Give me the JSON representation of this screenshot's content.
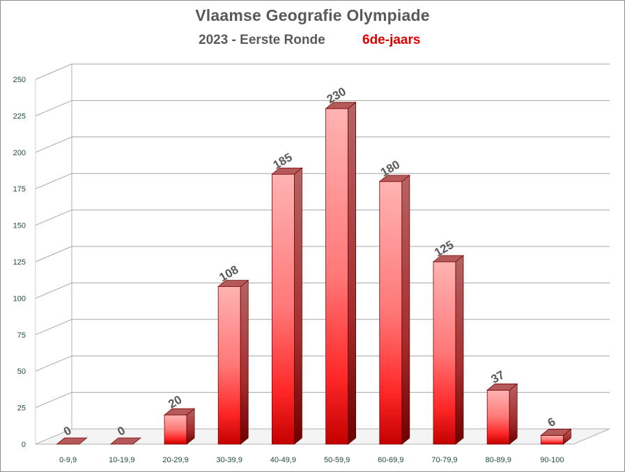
{
  "chart_data": {
    "type": "bar",
    "title": "Vlaamse Geografie Olympiade",
    "subtitle_left": "2023 - Eerste Ronde",
    "subtitle_right": "6de-jaars",
    "categories": [
      "0-9,9",
      "10-19,9",
      "20-29,9",
      "30-39,9",
      "40-49,9",
      "50-59,9",
      "60-69,9",
      "70-79,9",
      "80-89,9",
      "90-100"
    ],
    "values": [
      0,
      0,
      20,
      108,
      185,
      230,
      180,
      125,
      37,
      6
    ],
    "ylim": [
      0,
      250
    ],
    "yticks": [
      0,
      25,
      50,
      75,
      100,
      125,
      150,
      175,
      200,
      225,
      250
    ],
    "grid": true,
    "bar_color": "#e8141a",
    "subtitle_highlight_color": "#e00000"
  }
}
